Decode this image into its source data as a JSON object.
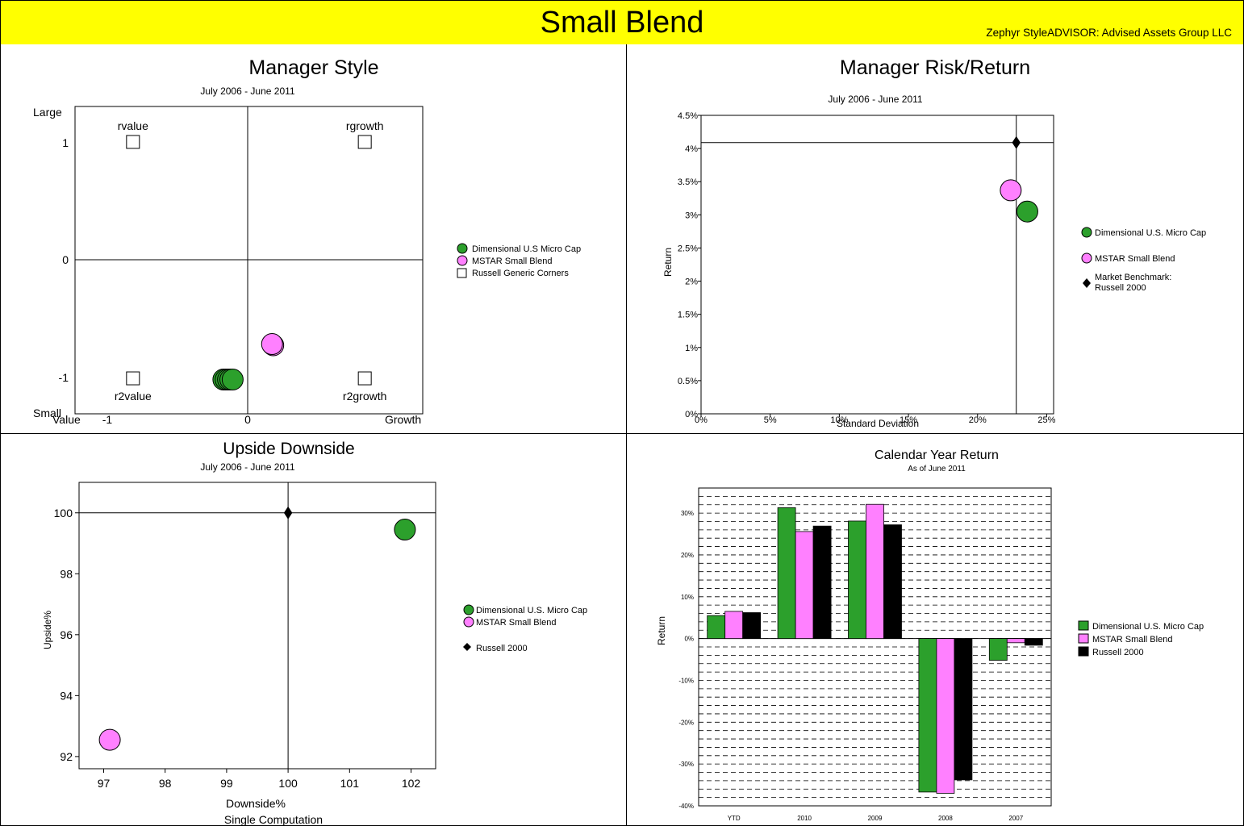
{
  "header": {
    "title": "Small Blend",
    "subtitle": "Zephyr StyleADVISOR: Advised Assets Group LLC"
  },
  "colors": {
    "banner": "#ffff00",
    "green": "#2ca02c",
    "pink": "#ff80ff",
    "black": "#000000"
  },
  "chart_data": [
    {
      "type": "scatter",
      "title": "Manager Style",
      "subtitle": "July 2006 - June 2011",
      "xlim": [
        -1.5,
        1.5
      ],
      "ylim": [
        -1.3,
        1.3
      ],
      "xticks": [
        "-1",
        "0"
      ],
      "yticks": [
        "1",
        "0",
        "-1"
      ],
      "axis_words": {
        "top_left": "Large",
        "bottom_left": "Small",
        "left": "Value",
        "right": "Growth"
      },
      "corners": [
        {
          "label": "rvalue",
          "x": -1,
          "y": 1
        },
        {
          "label": "rgrowth",
          "x": 1,
          "y": 1
        },
        {
          "label": "r2value",
          "x": -1,
          "y": -1
        },
        {
          "label": "r2growth",
          "x": 1,
          "y": -1
        }
      ],
      "series": [
        {
          "name": "Dimensional U.S Micro Cap",
          "marker": "circle",
          "color": "#2ca02c",
          "points": [
            [
              -0.22,
              -1.01
            ],
            [
              -0.2,
              -1.01
            ],
            [
              -0.18,
              -1.01
            ],
            [
              -0.16,
              -1.01
            ],
            [
              -0.14,
              -1.01
            ]
          ]
        },
        {
          "name": "MSTAR Small Blend",
          "marker": "circle",
          "color": "#ff80ff",
          "points": [
            [
              0.21,
              -0.72
            ],
            [
              0.2,
              -0.71
            ]
          ]
        },
        {
          "name": "Russell Generic Corners",
          "marker": "square",
          "color": "#ffffff",
          "points": []
        }
      ]
    },
    {
      "type": "scatter",
      "title": "Manager Risk/Return",
      "subtitle": "July 2006 - June 2011",
      "xlabel": "Standard Deviation",
      "ylabel": "Return",
      "xlim": [
        0,
        25.5
      ],
      "ylim": [
        0,
        4.5
      ],
      "xticks": [
        "0%",
        "5%",
        "10%",
        "15%",
        "20%",
        "25%"
      ],
      "yticks": [
        "0%",
        "0.5%",
        "1%",
        "1.5%",
        "2%",
        "2.5%",
        "3%",
        "3.5%",
        "4%",
        "4.5%"
      ],
      "benchmark": {
        "x": 22.8,
        "y": 4.09
      },
      "series": [
        {
          "name": "Dimensional U.S. Micro Cap",
          "marker": "circle",
          "color": "#2ca02c",
          "points": [
            [
              23.6,
              3.05
            ]
          ]
        },
        {
          "name": "MSTAR Small Blend",
          "marker": "circle",
          "color": "#ff80ff",
          "points": [
            [
              22.4,
              3.37
            ]
          ]
        },
        {
          "name": "Market Benchmark: Russell 2000",
          "marker": "diamond",
          "color": "#000000",
          "points": [
            [
              22.8,
              4.09
            ]
          ]
        }
      ],
      "legend_lines": {
        "benchmark_1": "Market Benchmark:",
        "benchmark_2": "Russell 2000"
      }
    },
    {
      "type": "scatter",
      "title": "Upside Downside",
      "subtitle": "July 2006 - June 2011",
      "xlabel": "Downside%",
      "ylabel": "Upside%",
      "footer": "Single Computation",
      "xlim": [
        96.6,
        102.4
      ],
      "ylim": [
        91.6,
        101
      ],
      "xticks": [
        "97",
        "98",
        "99",
        "100",
        "101",
        "102"
      ],
      "yticks": [
        "92",
        "94",
        "96",
        "98",
        "100"
      ],
      "benchmark": {
        "x": 100,
        "y": 100
      },
      "series": [
        {
          "name": "Dimensional U.S. Micro Cap",
          "marker": "circle",
          "color": "#2ca02c",
          "points": [
            [
              101.9,
              99.45
            ]
          ]
        },
        {
          "name": "MSTAR Small Blend",
          "marker": "circle",
          "color": "#ff80ff",
          "points": [
            [
              97.1,
              92.55
            ]
          ]
        },
        {
          "name": "Russell 2000",
          "marker": "diamond",
          "color": "#000000",
          "points": [
            [
              100,
              100
            ]
          ]
        }
      ]
    },
    {
      "type": "bar",
      "title": "Calendar Year Return",
      "subtitle": "As of June 2011",
      "ylabel": "Return",
      "categories": [
        "YTD",
        "2010",
        "2009",
        "2008",
        "2007"
      ],
      "ylim": [
        -40,
        36
      ],
      "yticks": [
        "30%",
        "20%",
        "10%",
        "0%",
        "-10%",
        "-20%",
        "-30%",
        "-40%"
      ],
      "series": [
        {
          "name": "Dimensional U.S. Micro Cap",
          "color": "#2ca02c",
          "values": [
            5.5,
            31.3,
            28.1,
            -36.7,
            -5.2
          ]
        },
        {
          "name": "MSTAR Small Blend",
          "color": "#ff80ff",
          "values": [
            6.5,
            25.6,
            32.1,
            -37.0,
            -1.0
          ]
        },
        {
          "name": "Russell 2000",
          "color": "#000000",
          "values": [
            6.2,
            26.9,
            27.2,
            -33.8,
            -1.6
          ]
        }
      ]
    }
  ]
}
